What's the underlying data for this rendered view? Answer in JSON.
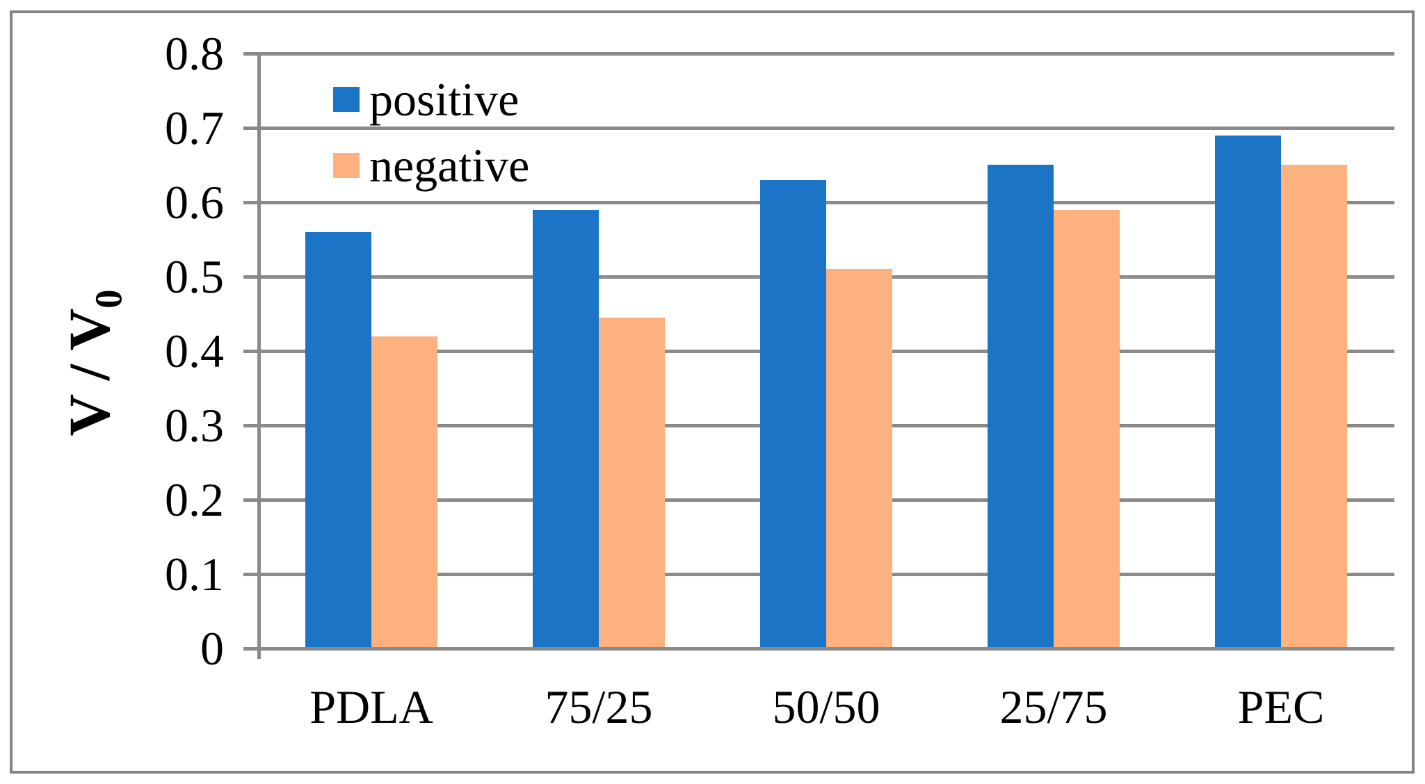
{
  "chart_data": {
    "type": "bar",
    "title": "",
    "xlabel": "",
    "ylabel": "V / V0",
    "ylabel_main": "V / V",
    "ylabel_sub": "0",
    "categories": [
      "PDLA",
      "75/25",
      "50/50",
      "25/75",
      "PEC"
    ],
    "series": [
      {
        "name": "positive",
        "color": "#1b74c6",
        "values": [
          0.56,
          0.59,
          0.63,
          0.65,
          0.69
        ]
      },
      {
        "name": "negative",
        "color": "#fcb17e",
        "values": [
          0.42,
          0.445,
          0.51,
          0.59,
          0.65
        ]
      }
    ],
    "ylim": [
      0,
      0.8
    ],
    "ytick_step": 0.1,
    "ytick_labels": [
      "0",
      "0.1",
      "0.2",
      "0.3",
      "0.4",
      "0.5",
      "0.6",
      "0.7",
      "0.8"
    ],
    "grid": true,
    "legend_position": "top-left-inside",
    "colors": {
      "gridline": "#8a8a8a",
      "axis": "#8a8a8a",
      "figure_border": "#858585",
      "text": "#000000",
      "background": "#ffffff"
    }
  },
  "legend": {
    "items": [
      {
        "label": "positive"
      },
      {
        "label": "negative"
      }
    ]
  }
}
